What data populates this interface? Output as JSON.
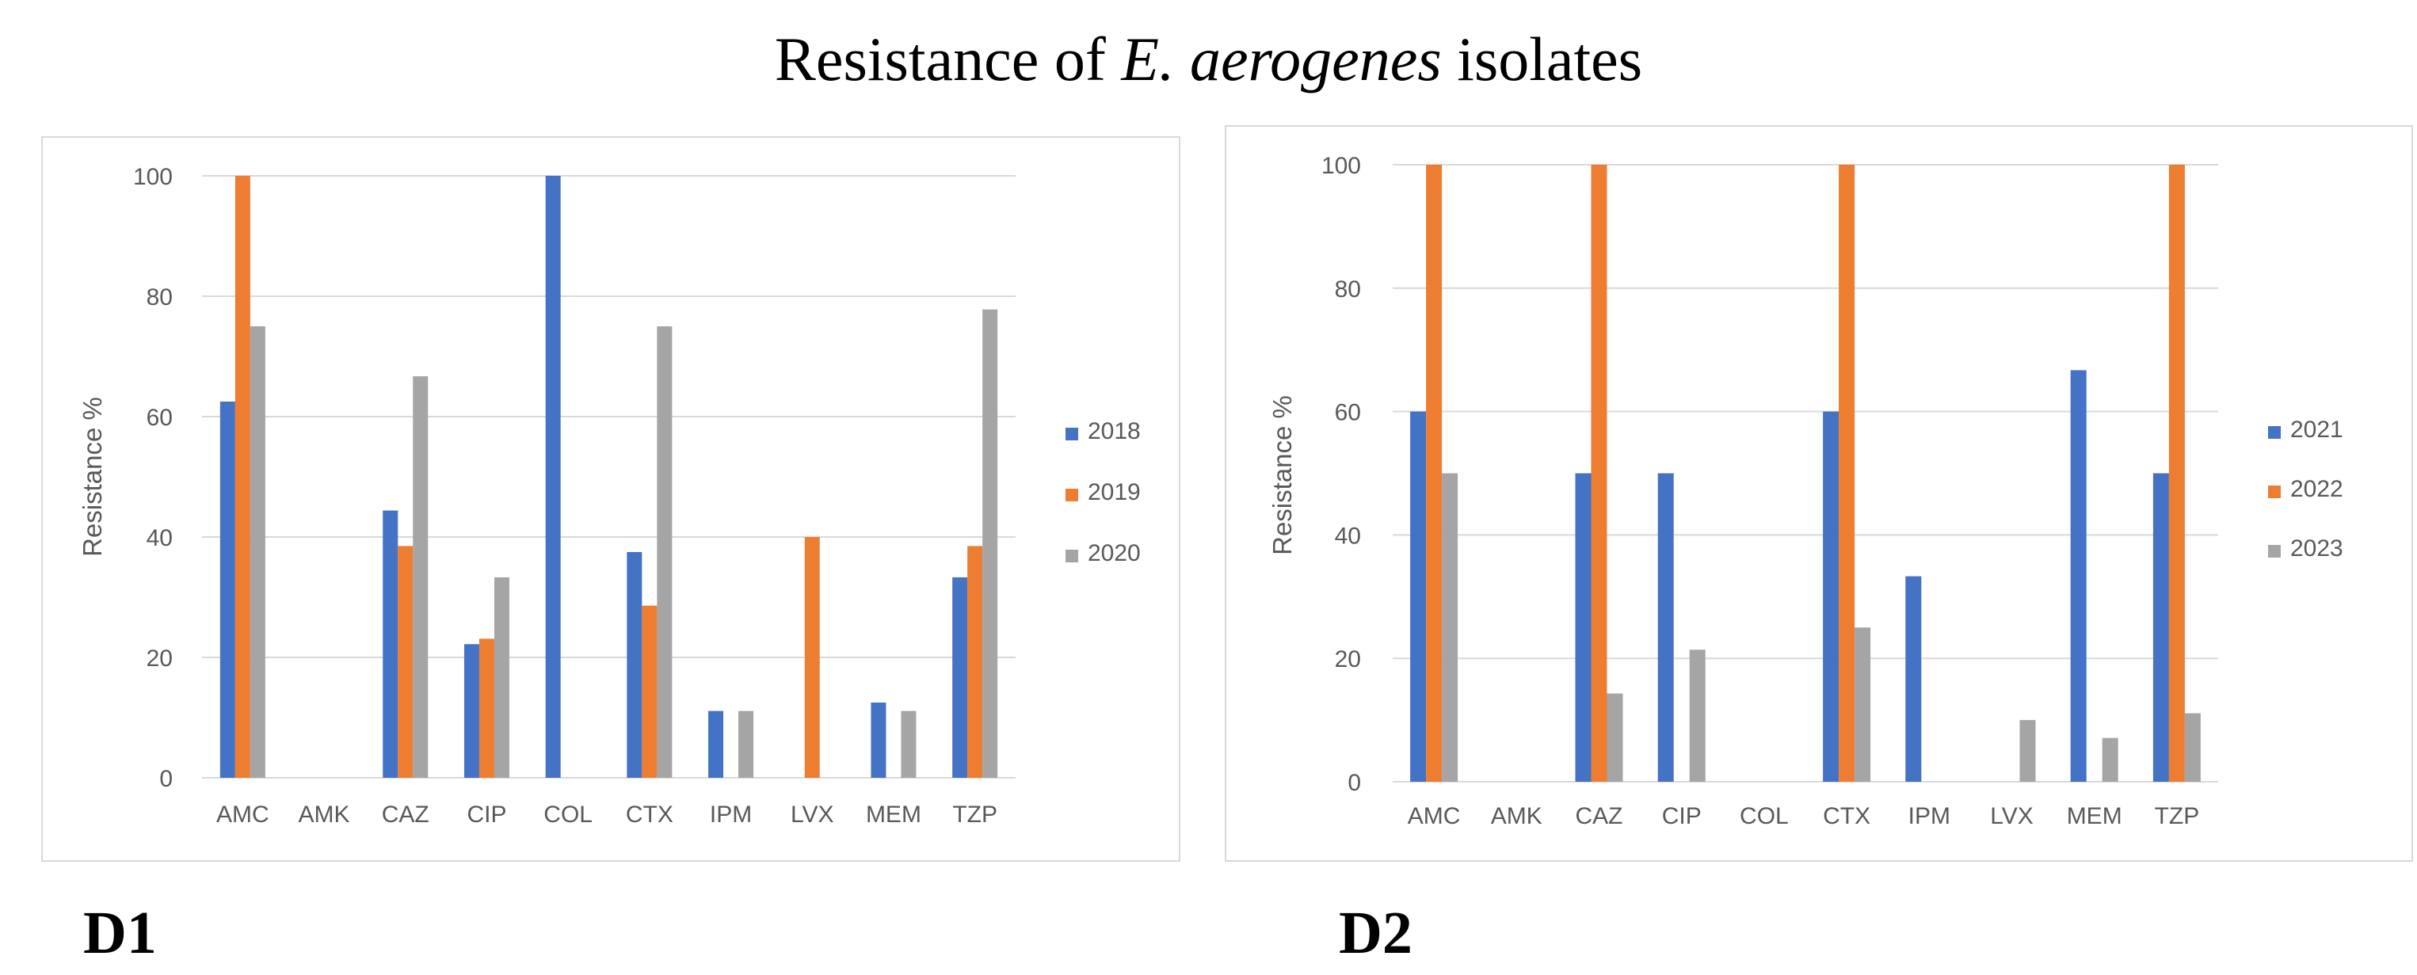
{
  "title": {
    "prefix": "Resistance of ",
    "italic": "E. aerogenes",
    "suffix": " isolates"
  },
  "panels": {
    "d1_label": "D1",
    "d2_label": "D2"
  },
  "colors": {
    "series1": "#4472C4",
    "series2": "#ED7D31",
    "series3": "#A5A5A5",
    "grid": "#D9D9D9",
    "text": "#595959"
  },
  "chart_data": [
    {
      "id": "D1",
      "type": "bar",
      "title": "",
      "xlabel": "",
      "ylabel": "Resistance %",
      "ylim": [
        0,
        100
      ],
      "yticks": [
        0,
        20,
        40,
        60,
        80,
        100
      ],
      "grid": true,
      "legend_position": "right",
      "categories": [
        "AMC",
        "AMK",
        "CAZ",
        "CIP",
        "COL",
        "CTX",
        "IPM",
        "LVX",
        "MEM",
        "TZP"
      ],
      "series": [
        {
          "name": "2018",
          "values": [
            62.5,
            0,
            44.4,
            22.2,
            100,
            37.5,
            11.1,
            0,
            12.5,
            33.3
          ]
        },
        {
          "name": "2019",
          "values": [
            100,
            0,
            38.5,
            23.1,
            0,
            28.6,
            0,
            40,
            0,
            38.5
          ]
        },
        {
          "name": "2020",
          "values": [
            75,
            0,
            66.7,
            33.3,
            0,
            75,
            11.1,
            0,
            11.1,
            77.8
          ]
        }
      ]
    },
    {
      "id": "D2",
      "type": "bar",
      "title": "",
      "xlabel": "",
      "ylabel": "Resistance %",
      "ylim": [
        0,
        100
      ],
      "yticks": [
        0,
        20,
        40,
        60,
        80,
        100
      ],
      "grid": true,
      "legend_position": "right",
      "categories": [
        "AMC",
        "AMK",
        "CAZ",
        "CIP",
        "COL",
        "CTX",
        "IPM",
        "LVX",
        "MEM",
        "TZP"
      ],
      "series": [
        {
          "name": "2021",
          "values": [
            60,
            0,
            50,
            50,
            0,
            60,
            33.3,
            0,
            66.7,
            50
          ]
        },
        {
          "name": "2022",
          "values": [
            100,
            0,
            100,
            0,
            0,
            100,
            0,
            0,
            0,
            100
          ]
        },
        {
          "name": "2023",
          "values": [
            50,
            0,
            14.3,
            21.4,
            0,
            25,
            0,
            10,
            7.1,
            11.1
          ]
        }
      ]
    }
  ]
}
